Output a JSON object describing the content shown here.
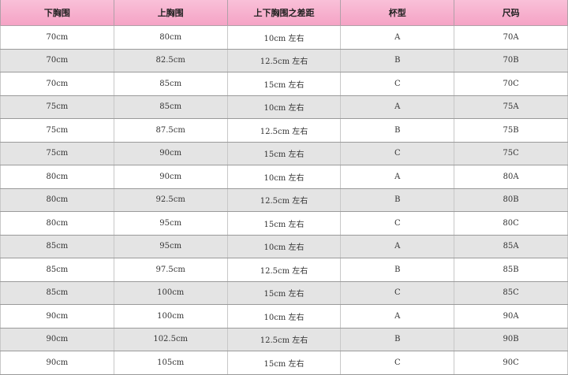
{
  "headers": [
    "下胸围",
    "上胸围",
    "上下胸围之差距",
    "杯型",
    "尺码"
  ],
  "rows": [
    [
      "70cm",
      "80cm",
      "10cm 左右",
      "A",
      "70A"
    ],
    [
      "70cm",
      "82.5cm",
      "12.5cm 左右",
      "B",
      "70B"
    ],
    [
      "70cm",
      "85cm",
      "15cm 左右",
      "C",
      "70C"
    ],
    [
      "75cm",
      "85cm",
      "10cm 左右",
      "A",
      "75A"
    ],
    [
      "75cm",
      "87.5cm",
      "12.5cm 左右",
      "B",
      "75B"
    ],
    [
      "75cm",
      "90cm",
      "15cm 左右",
      "C",
      "75C"
    ],
    [
      "80cm",
      "90cm",
      "10cm 左右",
      "A",
      "80A"
    ],
    [
      "80cm",
      "92.5cm",
      "12.5cm 左右",
      "B",
      "80B"
    ],
    [
      "80cm",
      "95cm",
      "15cm 左右",
      "C",
      "80C"
    ],
    [
      "85cm",
      "95cm",
      "10cm 左右",
      "A",
      "85A"
    ],
    [
      "85cm",
      "97.5cm",
      "12.5cm 左右",
      "B",
      "85B"
    ],
    [
      "85cm",
      "100cm",
      "15cm 左右",
      "C",
      "85C"
    ],
    [
      "90cm",
      "100cm",
      "10cm 左右",
      "A",
      "90A"
    ],
    [
      "90cm",
      "102.5cm",
      "12.5cm 左右",
      "B",
      "90B"
    ],
    [
      "90cm",
      "105cm",
      "15cm 左右",
      "C",
      "90C"
    ]
  ],
  "colors": {
    "header": "#f5a3c5",
    "stripe": "#e4e4e4"
  }
}
